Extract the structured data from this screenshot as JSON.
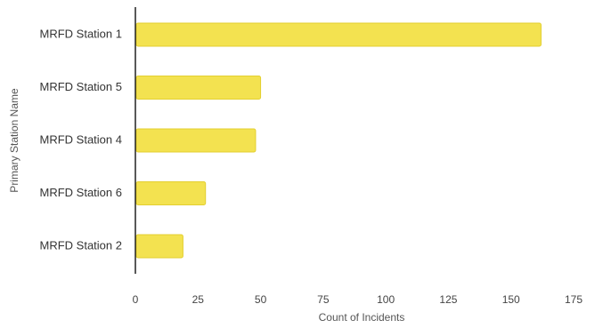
{
  "chart_data": {
    "type": "bar",
    "orientation": "horizontal",
    "categories": [
      "MRFD Station 1",
      "MRFD Station 5",
      "MRFD Station 4",
      "MRFD Station 6",
      "MRFD Station 2"
    ],
    "values": [
      162,
      50,
      48,
      28,
      19
    ],
    "xlabel": "Count of Incidents",
    "ylabel": "Primary Station Name",
    "xlim": [
      0,
      175
    ],
    "xticks": [
      0,
      25,
      50,
      75,
      100,
      125,
      150,
      175
    ],
    "grid": false,
    "legend": "none",
    "bar_color": "#f3e250",
    "bar_edge_color": "#e3cf30",
    "axis_color": "#222222"
  }
}
